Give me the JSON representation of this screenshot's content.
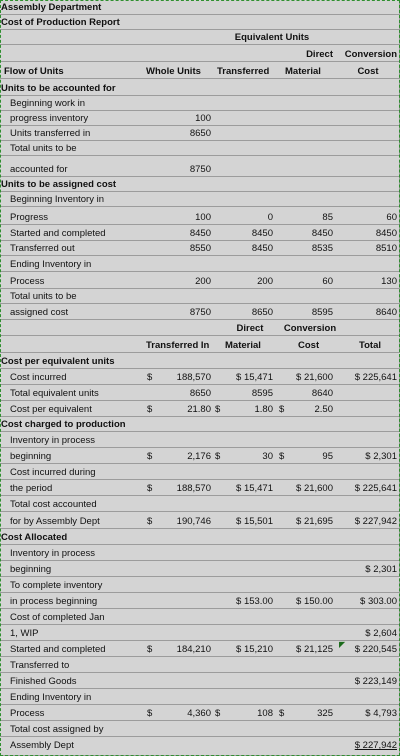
{
  "header": {
    "department": "Assembly Department",
    "report": "Cost of Production Report",
    "equiv_units": "Equivalent Units",
    "direct": "Direct",
    "conversion": "Conversion",
    "flow_of_units": "Flow of Units",
    "whole_units": "Whole Units",
    "transferred": "Transferred",
    "material": "Material",
    "cost": "Cost"
  },
  "rows": {
    "r6": "Units to be accounted for",
    "r7": "Beginning work in",
    "r8": "progress inventory",
    "r9": "Units transferred in",
    "r10": "Total units to be",
    "r11": "accounted for",
    "r12": "Units to be assigned cost",
    "r13": "Beginning Inventory in",
    "r14": "Progress",
    "r15": "Started and completed",
    "r16": "Transferred out",
    "r17": "Ending Inventory in",
    "r18": "Process",
    "r19": "Total units to be",
    "r20": "assigned cost",
    "r21_direct": "Direct",
    "r21_conversion": "Conversion",
    "r22_transferred_in": "Transferred In",
    "r22_material": "Material",
    "r22_cost": "Cost",
    "r22_total": "Total",
    "r23": "Cost per equivalent units",
    "r24": "Cost incurred",
    "r25": "Total equivalent units",
    "r26": "Cost per equivalent",
    "r27": "Cost charged to production",
    "r28": "Inventory in process",
    "r29": "beginning",
    "r30": "Cost incurred during",
    "r31": "the period",
    "r32": "Total cost accounted",
    "r33": "for by Assembly Dept",
    "r34": "Cost Allocated",
    "r35": "Inventory in process",
    "r36": "beginning",
    "r37": "To complete inventory",
    "r38": "in process beginning",
    "r39": "Cost of completed Jan",
    "r40": "1, WIP",
    "r41": "Started and completed",
    "r42": "Transferred to",
    "r43": "Finished Goods",
    "r44": "Ending Inventory in",
    "r45": "Process",
    "r46": "Total cost assigned by",
    "r47": "Assembly Dept"
  },
  "units": {
    "begin_wip": "100",
    "transferred_in": "8650",
    "total_accounted": "8750",
    "beg_inv": [
      "100",
      "0",
      "85",
      "60"
    ],
    "started_completed": [
      "8450",
      "8450",
      "8450",
      "8450"
    ],
    "transferred_out": [
      "8550",
      "8450",
      "8535",
      "8510"
    ],
    "ending_inv": [
      "200",
      "200",
      "60",
      "130"
    ],
    "total_assigned": [
      "8750",
      "8650",
      "8595",
      "8640"
    ]
  },
  "costs": {
    "dollar": "$",
    "incurred": [
      "188,570",
      "$ 15,471",
      "$ 21,600",
      "$ 225,641"
    ],
    "equiv_units": [
      "8650",
      "8595",
      "8640"
    ],
    "per_equiv": [
      "21.80",
      "1.80",
      "2.50"
    ],
    "inv_beginning": [
      "2,176",
      "30",
      "95",
      "$ 2,301"
    ],
    "incurred_period": [
      "188,570",
      "$ 15,471",
      "$ 21,600",
      "$ 225,641"
    ],
    "total_accounted": [
      "190,746",
      "$ 15,501",
      "$ 21,695",
      "$ 227,942"
    ],
    "alloc_inv_beginning": "$ 2,301",
    "to_complete": [
      "$ 153.00",
      "$ 150.00",
      "$ 303.00"
    ],
    "completed_jan1": "$ 2,604",
    "started_completed": [
      "184,210",
      "$ 15,210",
      "$ 21,125",
      "$ 220,545"
    ],
    "finished_goods": "$ 223,149",
    "ending_inv": [
      "4,360",
      "108",
      "325",
      "$ 4,793"
    ],
    "total_assigned": "$ 227,942"
  }
}
